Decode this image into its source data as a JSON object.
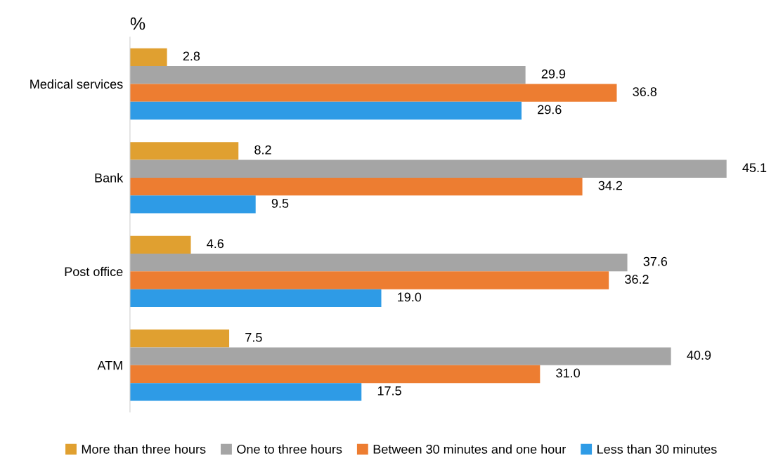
{
  "chart_data": {
    "type": "bar",
    "orientation": "horizontal",
    "ylabel": "%",
    "categories": [
      "Medical services",
      "Bank",
      "Post office",
      "ATM"
    ],
    "series": [
      {
        "name": "More than three hours",
        "color": "#e0a030",
        "values": [
          2.8,
          8.2,
          4.6,
          7.5
        ],
        "value_labels": [
          "2.8",
          "8.2",
          "4.6",
          "7.5"
        ]
      },
      {
        "name": "One to three hours",
        "color": "#a5a5a5",
        "values": [
          29.9,
          45.1,
          37.6,
          40.9
        ],
        "value_labels": [
          "29.9",
          "45.1",
          "37.6",
          "40.9"
        ]
      },
      {
        "name": "Between 30 minutes and one hour",
        "color": "#ed7d31",
        "values": [
          36.8,
          34.2,
          36.2,
          31.0
        ],
        "value_labels": [
          "36.8",
          "34.2",
          "36.2",
          "31.0"
        ]
      },
      {
        "name": "Less than 30 minutes",
        "color": "#2e9be6",
        "values": [
          29.6,
          9.5,
          19.0,
          17.5
        ],
        "value_labels": [
          "29.6",
          "9.5",
          "19.0",
          "17.5"
        ]
      }
    ],
    "tick_labels": "y",
    "grid": false,
    "legend": "bottom"
  }
}
